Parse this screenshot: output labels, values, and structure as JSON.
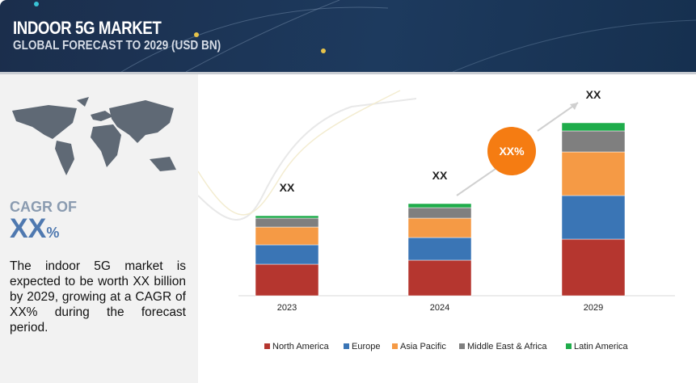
{
  "header": {
    "title": "INDOOR 5G MARKET",
    "subtitle": "GLOBAL FORECAST TO 2029 (USD BN)"
  },
  "left": {
    "cagr_label": "CAGR OF",
    "cagr_value": "XX",
    "cagr_unit": "%",
    "description": "The indoor 5G market is expected to be worth XX billion by 2029, growing at a CAGR of XX% during the forecast period."
  },
  "chart_data": {
    "type": "bar",
    "stacked": true,
    "title": "",
    "xlabel": "",
    "ylabel": "",
    "categories": [
      "2023",
      "2024",
      "2029"
    ],
    "bar_labels": [
      "XX",
      "XX",
      "XX"
    ],
    "growth_badge": "XX%",
    "ylim": [
      0,
      266
    ],
    "series": [
      {
        "name": "North America",
        "color": "#b5362f",
        "values": [
          39,
          44,
          70
        ]
      },
      {
        "name": "Europe",
        "color": "#3a75b5",
        "values": [
          24,
          28,
          54
        ]
      },
      {
        "name": "Asia Pacific",
        "color": "#f59a45",
        "values": [
          22,
          24,
          54
        ]
      },
      {
        "name": "Middle East & Africa",
        "color": "#7f7f7f",
        "values": [
          11,
          13,
          26
        ]
      },
      {
        "name": "Latin America",
        "color": "#1fac4b",
        "values": [
          3,
          5,
          10
        ]
      }
    ],
    "legend_position": "bottom"
  }
}
